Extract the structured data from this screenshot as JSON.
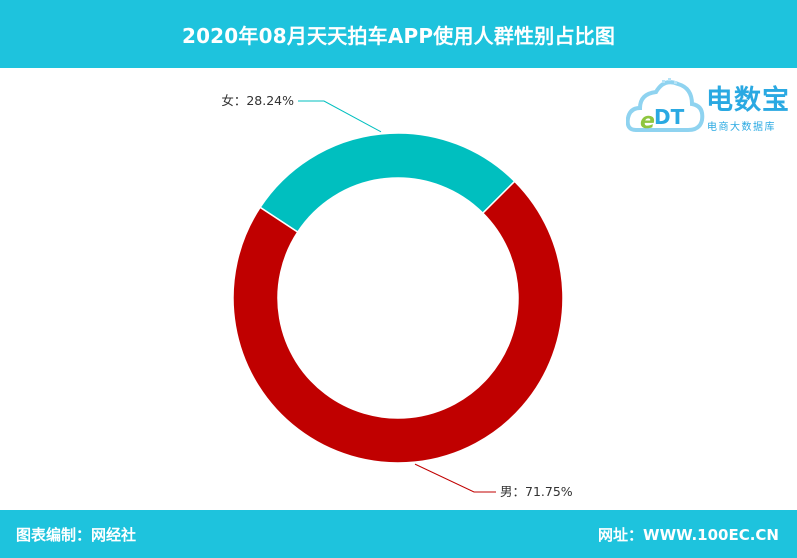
{
  "header": {
    "title": "2020年08月天天拍车APP使用人群性别占比图"
  },
  "footer": {
    "left": "图表编制：网经社",
    "right": "网址：WWW.100EC.CN"
  },
  "logo": {
    "mark": "eDT",
    "brand": "电数宝",
    "sub": "电商大数据库"
  },
  "colors": {
    "header_bg": "#1ec3dd",
    "male": "#c00000",
    "female": "#00bfbf"
  },
  "chart_data": {
    "type": "pie",
    "style": "donut",
    "title": "2020年08月天天拍车APP使用人群性别占比图",
    "series": [
      {
        "name": "女",
        "value": 28.24,
        "label": "女：28.24%",
        "color": "#00bfbf"
      },
      {
        "name": "男",
        "value": 71.75,
        "label": "男：71.75%",
        "color": "#c00000"
      }
    ]
  }
}
